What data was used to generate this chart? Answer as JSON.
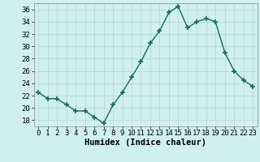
{
  "x": [
    0,
    1,
    2,
    3,
    4,
    5,
    6,
    7,
    8,
    9,
    10,
    11,
    12,
    13,
    14,
    15,
    16,
    17,
    18,
    19,
    20,
    21,
    22,
    23
  ],
  "y": [
    22.5,
    21.5,
    21.5,
    20.5,
    19.5,
    19.5,
    18.5,
    17.5,
    20.5,
    22.5,
    25.0,
    27.5,
    30.5,
    32.5,
    35.5,
    36.5,
    33.0,
    34.0,
    34.5,
    34.0,
    29.0,
    26.0,
    24.5,
    23.5
  ],
  "line_color": "#1a6b5a",
  "marker": "+",
  "marker_size": 5,
  "line_width": 1.0,
  "bg_color": "#cff0ec",
  "grid_color": "#b0d8d4",
  "xlabel": "Humidex (Indice chaleur)",
  "ylabel": "",
  "ylim": [
    17,
    37
  ],
  "xlim": [
    -0.5,
    23.5
  ],
  "yticks": [
    18,
    20,
    22,
    24,
    26,
    28,
    30,
    32,
    34,
    36
  ],
  "xticks": [
    0,
    1,
    2,
    3,
    4,
    5,
    6,
    7,
    8,
    9,
    10,
    11,
    12,
    13,
    14,
    15,
    16,
    17,
    18,
    19,
    20,
    21,
    22,
    23
  ],
  "xtick_labels": [
    "0",
    "1",
    "2",
    "3",
    "4",
    "5",
    "6",
    "7",
    "8",
    "9",
    "10",
    "11",
    "12",
    "13",
    "14",
    "15",
    "16",
    "17",
    "18",
    "19",
    "20",
    "21",
    "22",
    "23"
  ],
  "tick_fontsize": 6.5,
  "xlabel_fontsize": 7.5
}
